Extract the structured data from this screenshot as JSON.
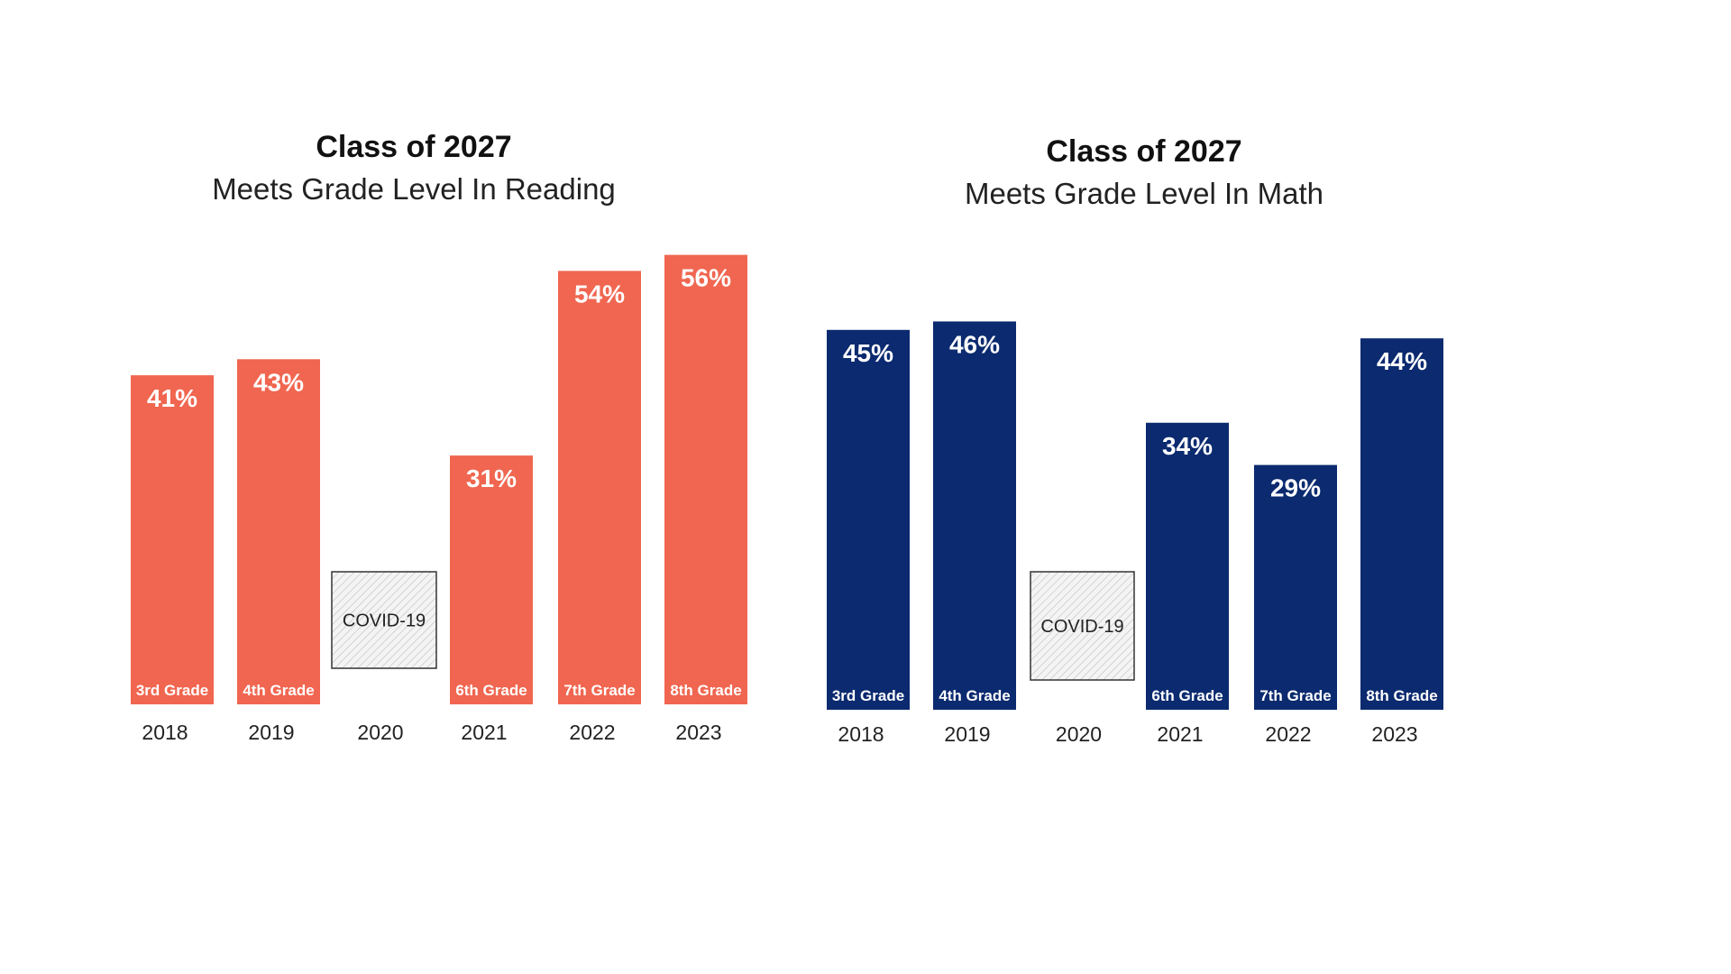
{
  "chart_data": [
    {
      "type": "bar",
      "title": "Class of 2027",
      "subtitle": "Meets Grade Level In Reading",
      "categories": [
        "2018",
        "2019",
        "2020",
        "2021",
        "2022",
        "2023"
      ],
      "grades": [
        "3rd Grade",
        "4th Grade",
        "",
        "6th Grade",
        "7th Grade",
        "8th Grade"
      ],
      "values": [
        41,
        43,
        null,
        31,
        54,
        56
      ],
      "labels": [
        "41%",
        "43%",
        "",
        "31%",
        "54%",
        "56%"
      ],
      "placeholder": {
        "category": "2020",
        "label": "COVID-19"
      },
      "color": "#F06650",
      "grid": false
    },
    {
      "type": "bar",
      "title": "Class of 2027",
      "subtitle": "Meets Grade Level In Math",
      "categories": [
        "2018",
        "2019",
        "2020",
        "2021",
        "2022",
        "2023"
      ],
      "grades": [
        "3rd Grade",
        "4th Grade",
        "",
        "6th Grade",
        "7th Grade",
        "8th Grade"
      ],
      "values": [
        45,
        46,
        null,
        34,
        29,
        44
      ],
      "labels": [
        "45%",
        "46%",
        "",
        "34%",
        "29%",
        "44%"
      ],
      "placeholder": {
        "category": "2020",
        "label": "COVID-19"
      },
      "color": "#0B2A6F",
      "grid": false
    }
  ]
}
